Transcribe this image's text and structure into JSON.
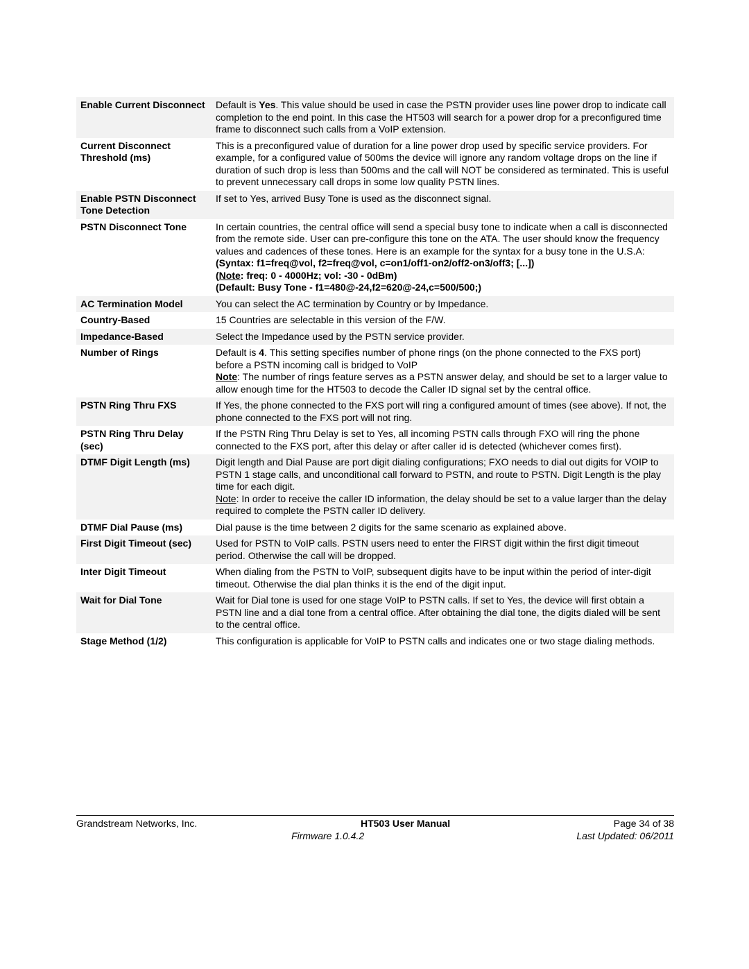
{
  "footer": {
    "company": "Grandstream Networks, Inc.",
    "manual": "HT503 User Manual",
    "page": "Page 34 of 38",
    "firmware": "Firmware 1.0.4.2",
    "updated": "Last Updated: 06/2011"
  },
  "rows": [
    {
      "label": "Enable Current Disconnect",
      "desc_html": "Default is <span class='b'>Yes</span>.  This value should be used in case the PSTN provider uses line power drop to indicate call completion to the end point.  In this case the HT503 will search for a power drop for a preconfigured time frame to disconnect such calls from a VoIP extension."
    },
    {
      "label": "Current Disconnect Threshold (ms)",
      "desc_html": "This is a preconfigured value of duration for a line power drop used by specific service providers.  For example, for a configured value of 500ms the device will ignore any random voltage drops on the line if duration of such drop is less than 500ms and the call will NOT be considered as terminated.  This is useful to prevent unnecessary call drops in some low quality PSTN lines."
    },
    {
      "label": "Enable PSTN Disconnect Tone Detection",
      "desc_html": "If set to Yes, arrived Busy Tone is used as the disconnect signal."
    },
    {
      "label": "PSTN Disconnect Tone",
      "desc_html": "In certain countries, the central office will send a special busy tone to indicate when a call is disconnected from the remote side.  User can pre-configure this tone on the ATA. The user should know the frequency values and cadences of these tones.  Here is an example for the syntax for a busy tone in the U.S.A:<br><span class='b'>(Syntax: f1=freq@vol, f2=freq@vol, c=on1/off1-on2/off2-on3/off3; [...])</span><br><span class='b'>(<span class='u'>Note</span>: freq: 0 - 4000Hz; vol: -30 - 0dBm)</span><br><span class='b'>(Default: Busy Tone - f1=480@-24,f2=620@-24,c=500/500;)</span>"
    },
    {
      "label": "AC Termination Model",
      "desc_html": "You can select the AC termination by Country or by Impedance."
    },
    {
      "label": "Country-Based",
      "desc_html": "15 Countries are selectable in this version of the F/W."
    },
    {
      "label": "Impedance-Based",
      "desc_html": "Select the Impedance used by the PSTN service provider."
    },
    {
      "label": "Number of Rings",
      "desc_html": "Default is <span class='b'>4</span>. This setting specifies number of phone rings (on the phone connected to the FXS port) before a PSTN incoming call is bridged to VoIP<br><span class='b u'>Note</span>: The number of rings feature serves as a PSTN answer delay, and should be set to a larger value to allow enough time for the HT503 to decode the Caller ID signal set by the central office."
    },
    {
      "label": "PSTN Ring Thru FXS",
      "desc_html": "If Yes, the phone connected to the FXS port will ring a configured amount of times (see above).  If not, the phone connected to the FXS port will not ring."
    },
    {
      "label": "PSTN Ring Thru Delay (sec)",
      "desc_html": "If the PSTN Ring Thru Delay is set to Yes, all incoming PSTN calls through FXO will ring the phone connected to the FXS port, after this delay or after caller id is detected (whichever comes first)."
    },
    {
      "label": "DTMF Digit Length (ms)",
      "desc_html": "Digit length and Dial Pause are port digit dialing configurations; FXO needs to dial out digits for VOIP to PSTN 1 stage calls, and unconditional call forward to PSTN, and route to PSTN.  Digit Length is the play time for each digit.<br><span class='u'>Note</span>: In order to receive the caller ID information, the delay should be set to a value larger than the delay required to complete the PSTN caller ID delivery."
    },
    {
      "label": "DTMF Dial Pause (ms)",
      "desc_html": "Dial pause is the time between 2 digits for the same scenario as explained above."
    },
    {
      "label": "First Digit Timeout (sec)",
      "desc_html": "Used for PSTN to VoIP calls. PSTN users need to enter the FIRST digit within the first digit timeout period.  Otherwise the call will be dropped."
    },
    {
      "label": "Inter Digit Timeout",
      "desc_html": "When dialing from the PSTN to VoIP, subsequent digits have to be input within the period of inter-digit timeout. Otherwise the dial plan thinks it is the end of the digit input."
    },
    {
      "label": "Wait for Dial Tone",
      "desc_html": "Wait for Dial tone is used for one stage VoIP to PSTN calls.  If set to Yes, the device will first obtain a PSTN line and a dial tone from a central office.  After obtaining the dial tone, the digits dialed will be sent to the central office."
    },
    {
      "label": "Stage Method (1/2)",
      "desc_html": "This configuration is applicable for VoIP to PSTN calls and indicates one or two stage dialing methods."
    }
  ]
}
